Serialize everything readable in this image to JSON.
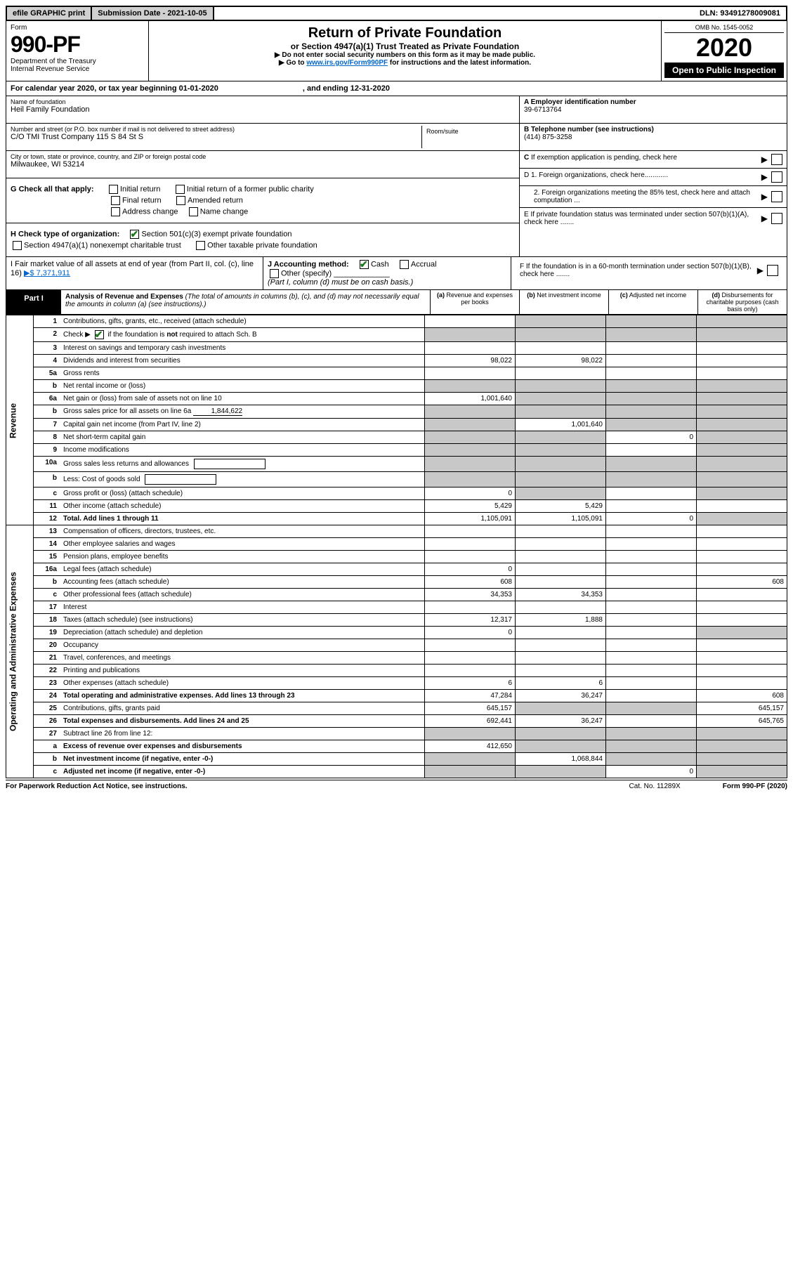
{
  "topbar": {
    "efile": "efile GRAPHIC print",
    "subdate_label": "Submission Date - 2021-10-05",
    "dln_label": "DLN: 93491278009081"
  },
  "formhdr": {
    "form_word": "Form",
    "form_no": "990-PF",
    "dept": "Department of the Treasury",
    "irs": "Internal Revenue Service",
    "title": "Return of Private Foundation",
    "subtitle": "or Section 4947(a)(1) Trust Treated as Private Foundation",
    "note1": "▶ Do not enter social security numbers on this form as it may be made public.",
    "note2_pre": "▶ Go to ",
    "note2_link": "www.irs.gov/Form990PF",
    "note2_post": " for instructions and the latest information.",
    "omb": "OMB No. 1545-0052",
    "year": "2020",
    "open": "Open to Public Inspection"
  },
  "calrow": {
    "label": "For calendar year 2020, or tax year beginning 01-01-2020",
    "end": ", and ending 12-31-2020"
  },
  "entity": {
    "name_label": "Name of foundation",
    "name": "Heil Family Foundation",
    "addr_label": "Number and street (or P.O. box number if mail is not delivered to street address)",
    "addr": "C/O TMI Trust Company 115 S 84 St S",
    "room_label": "Room/suite",
    "city_label": "City or town, state or province, country, and ZIP or foreign postal code",
    "city": "Milwaukee, WI  53214",
    "A_label": "A Employer identification number",
    "A_val": "39-6713764",
    "B_label": "B Telephone number (see instructions)",
    "B_val": "(414) 875-3258",
    "C_label": "C If exemption application is pending, check here",
    "D1": "D 1. Foreign organizations, check here............",
    "D2": "2. Foreign organizations meeting the 85% test, check here and attach computation ...",
    "E": "E  If private foundation status was terminated under section 507(b)(1)(A), check here .......",
    "F": "F  If the foundation is in a 60-month termination under section 507(b)(1)(B), check here .......",
    "G_label": "G Check all that apply:",
    "G_opts": [
      "Initial return",
      "Final return",
      "Address change",
      "Initial return of a former public charity",
      "Amended return",
      "Name change"
    ],
    "H_label": "H Check type of organization:",
    "H1": "Section 501(c)(3) exempt private foundation",
    "H2": "Section 4947(a)(1) nonexempt charitable trust",
    "H3": "Other taxable private foundation",
    "I_label": "I Fair market value of all assets at end of year (from Part II, col. (c), line 16)",
    "I_val": "▶$  7,371,911",
    "J_label": "J Accounting method:",
    "J_cash": "Cash",
    "J_accr": "Accrual",
    "J_other": "Other (specify)",
    "J_note": "(Part I, column (d) must be on cash basis.)"
  },
  "part1": {
    "label": "Part I",
    "title": "Analysis of Revenue and Expenses",
    "title_note": " (The total of amounts in columns (b), (c), and (d) may not necessarily equal the amounts in column (a) (see instructions).)",
    "col_a": "Revenue and expenses per books",
    "col_b": "Net investment income",
    "col_c": "Adjusted net income",
    "col_d": "Disbursements for charitable purposes (cash basis only)"
  },
  "sidelabels": {
    "rev": "Revenue",
    "exp": "Operating and Administrative Expenses"
  },
  "lines": {
    "1": {
      "d": "Contributions, gifts, grants, etc., received (attach schedule)"
    },
    "2": {
      "d": "Check ▶ ☑ if the foundation is not required to attach Sch. B"
    },
    "3": {
      "d": "Interest on savings and temporary cash investments"
    },
    "4": {
      "d": "Dividends and interest from securities",
      "a": "98,022",
      "b": "98,022"
    },
    "5a": {
      "d": "Gross rents"
    },
    "5b": {
      "d": "Net rental income or (loss)"
    },
    "6a": {
      "d": "Net gain or (loss) from sale of assets not on line 10",
      "a": "1,001,640"
    },
    "6b": {
      "d": "Gross sales price for all assets on line 6a",
      "box": "1,844,622"
    },
    "7": {
      "d": "Capital gain net income (from Part IV, line 2)",
      "b": "1,001,640"
    },
    "8": {
      "d": "Net short-term capital gain",
      "c": "0"
    },
    "9": {
      "d": "Income modifications"
    },
    "10a": {
      "d": "Gross sales less returns and allowances"
    },
    "10b": {
      "d": "Less: Cost of goods sold"
    },
    "10c": {
      "d": "Gross profit or (loss) (attach schedule)",
      "a": "0"
    },
    "11": {
      "d": "Other income (attach schedule)",
      "a": "5,429",
      "b": "5,429"
    },
    "12": {
      "d": "Total. Add lines 1 through 11",
      "a": "1,105,091",
      "b": "1,105,091",
      "c": "0",
      "bold": true
    },
    "13": {
      "d": "Compensation of officers, directors, trustees, etc."
    },
    "14": {
      "d": "Other employee salaries and wages"
    },
    "15": {
      "d": "Pension plans, employee benefits"
    },
    "16a": {
      "d": "Legal fees (attach schedule)",
      "a": "0"
    },
    "16b": {
      "d": "Accounting fees (attach schedule)",
      "a": "608",
      "dd": "608"
    },
    "16c": {
      "d": "Other professional fees (attach schedule)",
      "a": "34,353",
      "b": "34,353"
    },
    "17": {
      "d": "Interest"
    },
    "18": {
      "d": "Taxes (attach schedule) (see instructions)",
      "a": "12,317",
      "b": "1,888"
    },
    "19": {
      "d": "Depreciation (attach schedule) and depletion",
      "a": "0"
    },
    "20": {
      "d": "Occupancy"
    },
    "21": {
      "d": "Travel, conferences, and meetings"
    },
    "22": {
      "d": "Printing and publications"
    },
    "23": {
      "d": "Other expenses (attach schedule)",
      "a": "6",
      "b": "6"
    },
    "24": {
      "d": "Total operating and administrative expenses. Add lines 13 through 23",
      "a": "47,284",
      "b": "36,247",
      "dd": "608",
      "bold": true
    },
    "25": {
      "d": "Contributions, gifts, grants paid",
      "a": "645,157",
      "dd": "645,157"
    },
    "26": {
      "d": "Total expenses and disbursements. Add lines 24 and 25",
      "a": "692,441",
      "b": "36,247",
      "dd": "645,765",
      "bold": true
    },
    "27": {
      "d": "Subtract line 26 from line 12:"
    },
    "27a": {
      "d": "Excess of revenue over expenses and disbursements",
      "a": "412,650",
      "bold": true
    },
    "27b": {
      "d": "Net investment income (if negative, enter -0-)",
      "b": "1,068,844",
      "bold": true
    },
    "27c": {
      "d": "Adjusted net income (if negative, enter -0-)",
      "c": "0",
      "bold": true
    }
  },
  "footer": {
    "left": "For Paperwork Reduction Act Notice, see instructions.",
    "mid": "Cat. No. 11289X",
    "right": "Form 990-PF (2020)"
  }
}
